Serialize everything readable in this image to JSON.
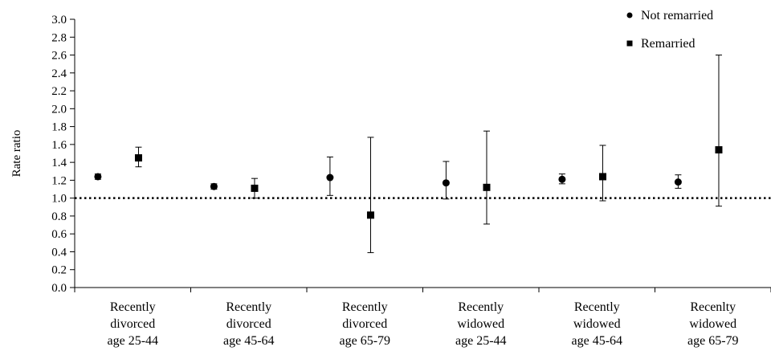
{
  "chart_data": {
    "type": "scatter",
    "ylabel": "Rate ratio",
    "xlabel": "",
    "ylim": [
      0,
      3.0
    ],
    "y_ticks": [
      "0.0",
      "0.2",
      "0.4",
      "0.6",
      "0.8",
      "1.0",
      "1.2",
      "1.4",
      "1.6",
      "1.8",
      "2.0",
      "2.2",
      "2.4",
      "2.6",
      "2.8",
      "3.0"
    ],
    "reference_line": 1.0,
    "grid": false,
    "legend_position": "top-right",
    "categories": [
      [
        "Recently",
        "divorced",
        "age 25-44"
      ],
      [
        "Recently",
        "divorced",
        "age 45-64"
      ],
      [
        "Recently",
        "divorced",
        "age 65-79"
      ],
      [
        "Recently",
        "widowed",
        "age 25-44"
      ],
      [
        "Recently",
        "widowed",
        "age 45-64"
      ],
      [
        "Recenlty",
        "widowed",
        "age 65-79"
      ]
    ],
    "series": [
      {
        "name": "Not remarried",
        "marker": "circle",
        "values": [
          1.24,
          1.13,
          1.23,
          1.17,
          1.21,
          1.18
        ],
        "lower": [
          1.21,
          1.1,
          1.03,
          0.99,
          1.16,
          1.11
        ],
        "upper": [
          1.27,
          1.16,
          1.46,
          1.41,
          1.27,
          1.26
        ]
      },
      {
        "name": "Remarried",
        "marker": "square",
        "values": [
          1.45,
          1.11,
          0.81,
          1.12,
          1.24,
          1.54
        ],
        "lower": [
          1.35,
          1.0,
          0.39,
          0.71,
          0.97,
          0.91
        ],
        "upper": [
          1.57,
          1.22,
          1.68,
          1.75,
          1.59,
          2.6
        ]
      }
    ]
  }
}
